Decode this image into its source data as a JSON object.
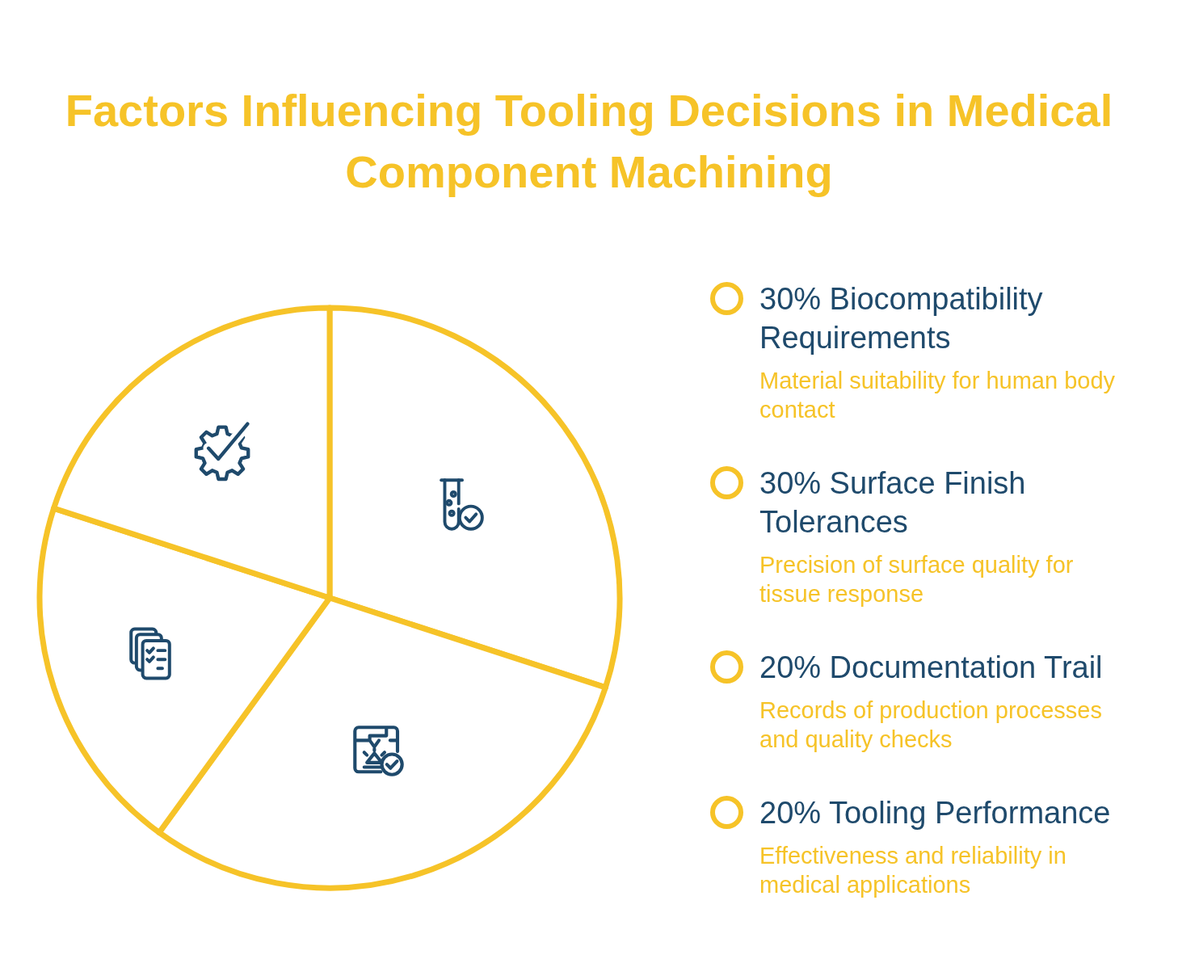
{
  "chart_data": {
    "type": "pie",
    "title": "Factors Influencing Tooling Decisions in Medical Component Machining",
    "categories": [
      "Biocompatibility Requirements",
      "Surface Finish Tolerances",
      "Documentation Trail",
      "Tooling Performance"
    ],
    "values": [
      30,
      30,
      20,
      20
    ],
    "value_labels": [
      "30%",
      "30%",
      "20%",
      "20%"
    ],
    "colors": [
      "#ffffff",
      "#ffffff",
      "#ffffff",
      "#ffffff"
    ],
    "legend": "right",
    "annotations": [
      "Material suitability for human body contact",
      "Precision of surface quality for tissue response",
      "Records of production processes and quality checks",
      "Effectiveness and reliability in medical applications"
    ]
  }
}
